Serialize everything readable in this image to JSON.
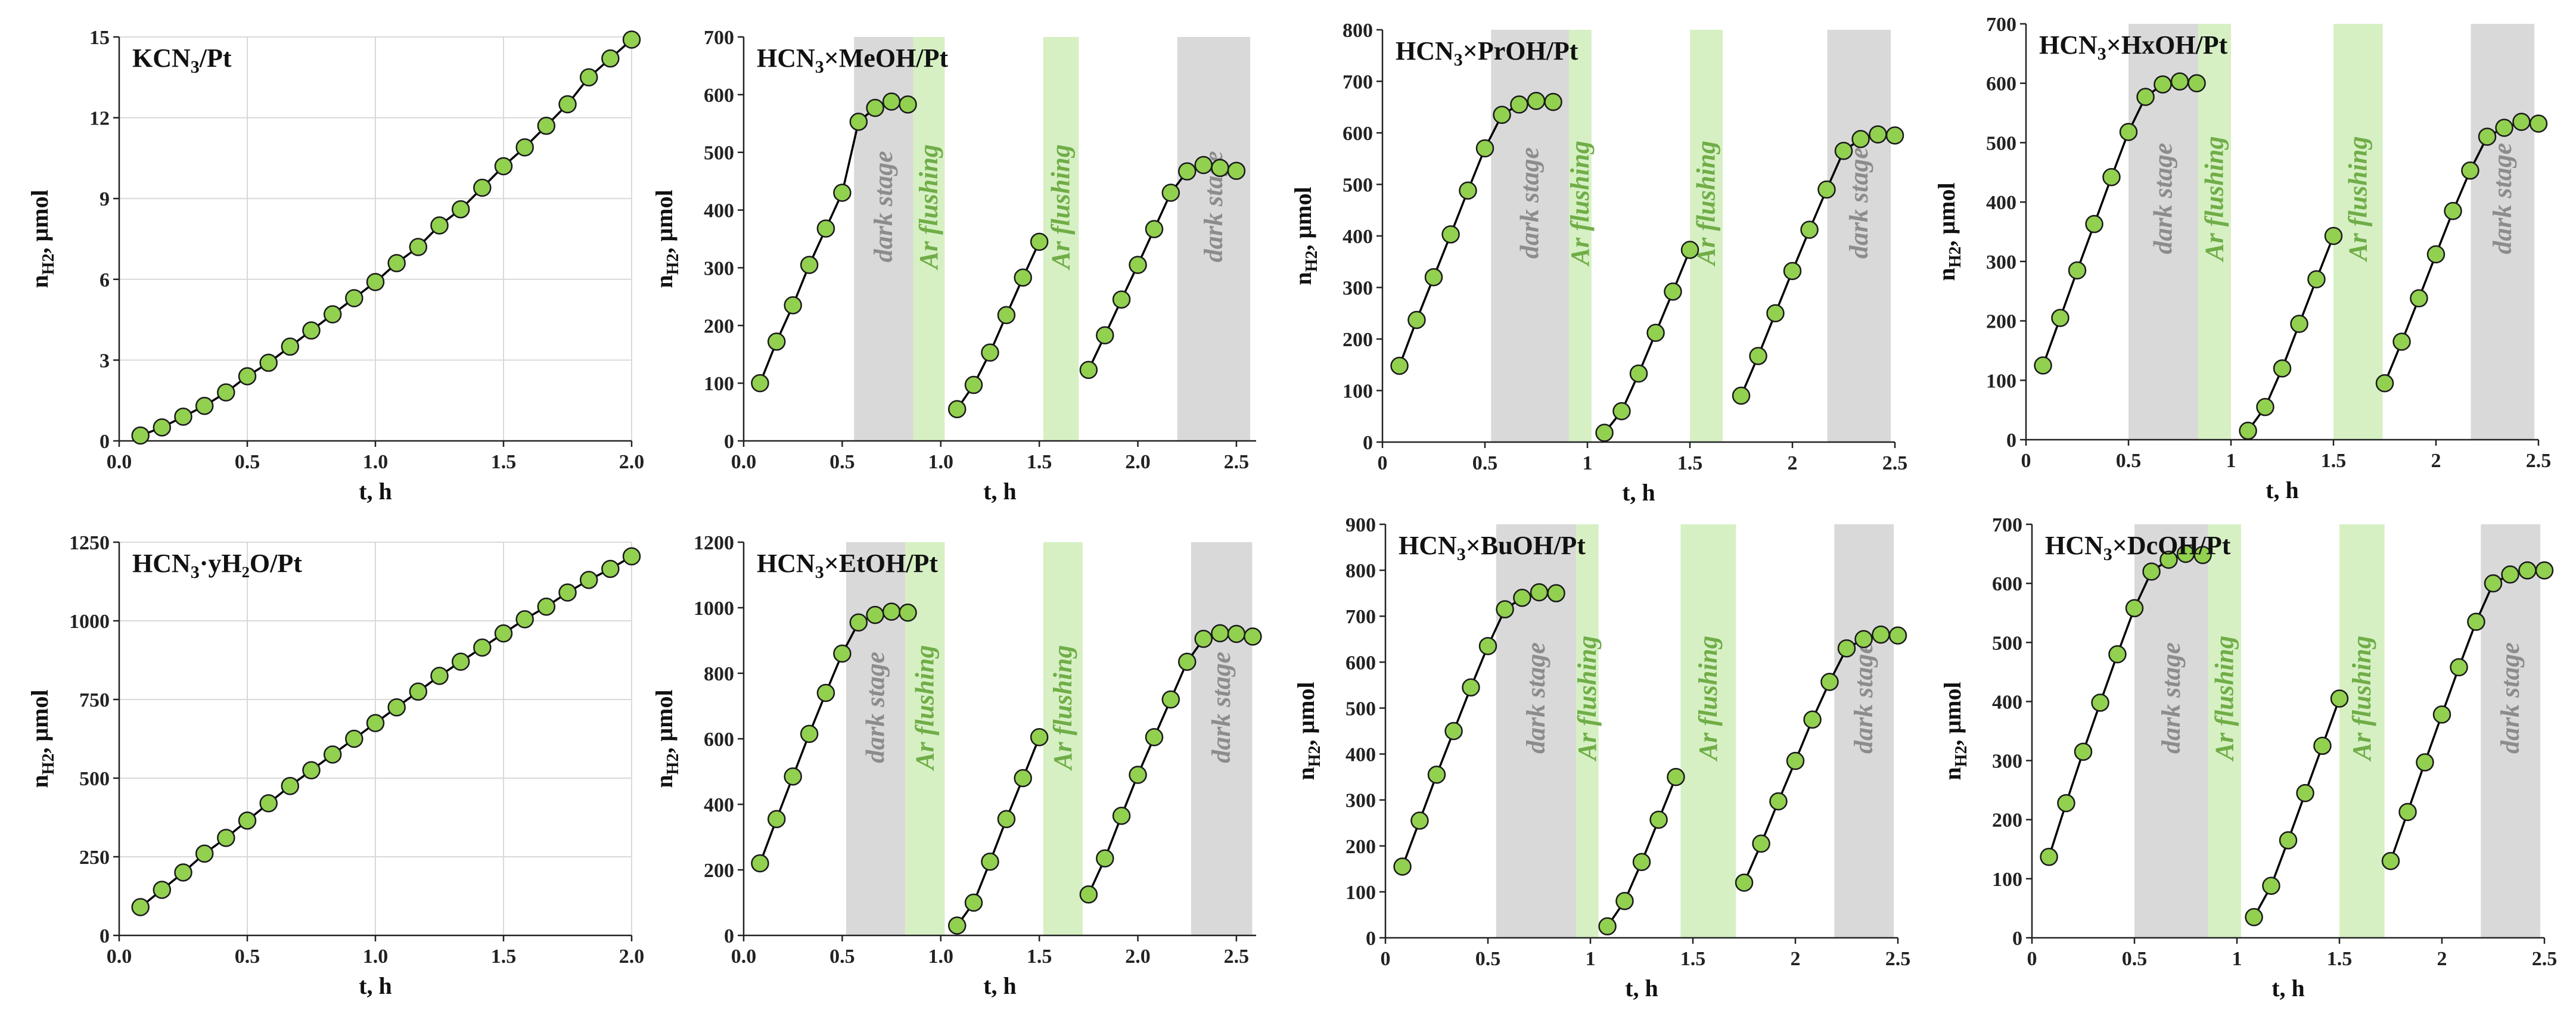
{
  "colors": {
    "marker_fill": "#92d050",
    "marker_edge": "#1a1a1a",
    "line": "#000000",
    "dark_band": "#d9d9d9",
    "ar_band": "#d6f0c4",
    "dark_text": "#8c8c8c",
    "ar_text": "#70ad47",
    "gridline": "#d9d9d9"
  },
  "chart_data": [
    {
      "type": "line",
      "title": "KCN",
      "title_sub": "3",
      "title_suffix": "/Pt",
      "xlabel": "t, h",
      "ylabel": "n",
      "ylabel_sub": "H2",
      "ylabel_suffix": ", μmol",
      "xlim": [
        0,
        2.0
      ],
      "xticks": [
        0,
        0.5,
        1.0,
        1.5,
        2.0
      ],
      "xtick_labels": [
        "0.0",
        "0.5",
        "1.0",
        "1.5",
        "2.0"
      ],
      "ylim": [
        0,
        15
      ],
      "yticks": [
        0,
        3,
        6,
        9,
        12,
        15
      ],
      "grid": true,
      "shades": [],
      "series": [
        {
          "x": [
            0.083,
            0.167,
            0.25,
            0.333,
            0.417,
            0.5,
            0.583,
            0.667,
            0.75,
            0.833,
            0.917,
            1.0,
            1.083,
            1.167,
            1.25,
            1.333,
            1.417,
            1.5,
            1.583,
            1.667,
            1.75,
            1.833,
            1.917,
            2.0
          ],
          "y": [
            0.2,
            0.5,
            0.9,
            1.3,
            1.8,
            2.4,
            2.9,
            3.5,
            4.1,
            4.7,
            5.3,
            5.9,
            6.6,
            7.2,
            8.0,
            8.6,
            9.4,
            10.2,
            10.9,
            11.7,
            12.5,
            13.5,
            14.2,
            14.9
          ]
        }
      ]
    },
    {
      "type": "line",
      "title": "HCN",
      "title_sub": "3",
      "title_suffix": "×MeOH/Pt",
      "xlabel": "t, h",
      "ylabel": "n",
      "ylabel_sub": "H2",
      "ylabel_suffix": ", μmol",
      "xlim": [
        0,
        2.6
      ],
      "xticks": [
        0,
        0.5,
        1.0,
        1.5,
        2.0,
        2.5
      ],
      "xtick_labels": [
        "0.0",
        "0.5",
        "1.0",
        "1.5",
        "2.0",
        "2.5"
      ],
      "ylim": [
        0,
        700
      ],
      "yticks": [
        0,
        100,
        200,
        300,
        400,
        500,
        600,
        700
      ],
      "grid": false,
      "shades": [
        {
          "kind": "dark",
          "x0": 0.56,
          "x1": 0.86,
          "label": "dark stage"
        },
        {
          "kind": "ar",
          "x0": 0.86,
          "x1": 1.02,
          "label": "Ar flushing"
        },
        {
          "kind": "ar",
          "x0": 1.52,
          "x1": 1.7,
          "label": "Ar flushing"
        },
        {
          "kind": "dark",
          "x0": 2.2,
          "x1": 2.57,
          "label": "dark stage"
        }
      ],
      "series": [
        {
          "x": [
            0.083,
            0.167,
            0.25,
            0.333,
            0.417,
            0.5,
            0.583,
            0.667,
            0.75,
            0.833
          ],
          "y": [
            100,
            172,
            235,
            305,
            368,
            430,
            553,
            577,
            588,
            583
          ]
        },
        {
          "x": [
            1.083,
            1.167,
            1.25,
            1.333,
            1.417,
            1.5
          ],
          "y": [
            55,
            97,
            153,
            218,
            283,
            345
          ]
        },
        {
          "x": [
            1.75,
            1.833,
            1.917,
            2.0,
            2.083,
            2.167,
            2.25,
            2.333,
            2.417,
            2.5
          ],
          "y": [
            123,
            183,
            245,
            305,
            367,
            430,
            467,
            478,
            473,
            468
          ]
        }
      ]
    },
    {
      "type": "line",
      "title": "HCN",
      "title_sub": "3",
      "title_suffix": "×PrOH/Pt",
      "xlabel": "t, h",
      "ylabel": "n",
      "ylabel_sub": "H2",
      "ylabel_suffix": ", μmol",
      "xlim": [
        0,
        2.5
      ],
      "xticks": [
        0,
        0.5,
        1.0,
        1.5,
        2.0,
        2.5
      ],
      "xtick_labels": [
        "0",
        "0.5",
        "1",
        "1.5",
        "2",
        "2.5"
      ],
      "ylim": [
        0,
        800
      ],
      "yticks": [
        0,
        100,
        200,
        300,
        400,
        500,
        600,
        700,
        800
      ],
      "grid": false,
      "shades": [
        {
          "kind": "dark",
          "x0": 0.53,
          "x1": 0.91,
          "label": "dark stage"
        },
        {
          "kind": "ar",
          "x0": 0.91,
          "x1": 1.02,
          "label": "Ar flushing"
        },
        {
          "kind": "ar",
          "x0": 1.5,
          "x1": 1.66,
          "label": "Ar flushing"
        },
        {
          "kind": "dark",
          "x0": 2.17,
          "x1": 2.48,
          "label": "dark stage"
        }
      ],
      "series": [
        {
          "x": [
            0.083,
            0.167,
            0.25,
            0.333,
            0.417,
            0.5,
            0.583,
            0.667,
            0.75,
            0.833
          ],
          "y": [
            148,
            237,
            320,
            403,
            488,
            570,
            635,
            655,
            662,
            660
          ]
        },
        {
          "x": [
            1.083,
            1.167,
            1.25,
            1.333,
            1.417,
            1.5
          ],
          "y": [
            18,
            60,
            133,
            212,
            292,
            373
          ]
        },
        {
          "x": [
            1.75,
            1.833,
            1.917,
            2.0,
            2.083,
            2.167,
            2.25,
            2.333,
            2.417,
            2.5
          ],
          "y": [
            90,
            167,
            250,
            332,
            412,
            490,
            565,
            588,
            597,
            595
          ]
        }
      ]
    },
    {
      "type": "line",
      "title": "HCN",
      "title_sub": "3",
      "title_suffix": "×HxOH/Pt",
      "xlabel": "t, h",
      "ylabel": "n",
      "ylabel_sub": "H2",
      "ylabel_suffix": ", μmol",
      "xlim": [
        0,
        2.5
      ],
      "xticks": [
        0,
        0.5,
        1.0,
        1.5,
        2.0,
        2.5
      ],
      "xtick_labels": [
        "0",
        "0.5",
        "1",
        "1.5",
        "2",
        "2.5"
      ],
      "ylim": [
        0,
        700
      ],
      "yticks": [
        0,
        100,
        200,
        300,
        400,
        500,
        600,
        700
      ],
      "grid": false,
      "shades": [
        {
          "kind": "dark",
          "x0": 0.5,
          "x1": 0.84,
          "label": "dark stage"
        },
        {
          "kind": "ar",
          "x0": 0.84,
          "x1": 1.0,
          "label": "Ar flushing"
        },
        {
          "kind": "ar",
          "x0": 1.5,
          "x1": 1.74,
          "label": "Ar flushing"
        },
        {
          "kind": "dark",
          "x0": 2.17,
          "x1": 2.48,
          "label": "dark stage"
        }
      ],
      "series": [
        {
          "x": [
            0.083,
            0.167,
            0.25,
            0.333,
            0.417,
            0.5,
            0.583,
            0.667,
            0.75,
            0.833
          ],
          "y": [
            125,
            205,
            285,
            363,
            442,
            518,
            577,
            598,
            603,
            600
          ]
        },
        {
          "x": [
            1.083,
            1.167,
            1.25,
            1.333,
            1.417,
            1.5
          ],
          "y": [
            15,
            55,
            120,
            195,
            270,
            343
          ]
        },
        {
          "x": [
            1.75,
            1.833,
            1.917,
            2.0,
            2.083,
            2.167,
            2.25,
            2.333,
            2.417,
            2.5
          ],
          "y": [
            95,
            165,
            238,
            312,
            385,
            453,
            510,
            525,
            535,
            532
          ]
        }
      ]
    },
    {
      "type": "line",
      "title": "HCN",
      "title_sub": "3",
      "title_suffix": "·yH₂O/Pt",
      "xlabel": "t, h",
      "ylabel": "n",
      "ylabel_sub": "H2",
      "ylabel_suffix": ", μmol",
      "xlim": [
        0,
        2.0
      ],
      "xticks": [
        0,
        0.5,
        1.0,
        1.5,
        2.0
      ],
      "xtick_labels": [
        "0.0",
        "0.5",
        "1.0",
        "1.5",
        "2.0"
      ],
      "ylim": [
        0,
        1250
      ],
      "yticks": [
        0,
        250,
        500,
        750,
        1000,
        1250
      ],
      "grid": true,
      "shades": [],
      "series": [
        {
          "x": [
            0.083,
            0.167,
            0.25,
            0.333,
            0.417,
            0.5,
            0.583,
            0.667,
            0.75,
            0.833,
            0.917,
            1.0,
            1.083,
            1.167,
            1.25,
            1.333,
            1.417,
            1.5,
            1.583,
            1.667,
            1.75,
            1.833,
            1.917,
            2.0
          ],
          "y": [
            90,
            145,
            200,
            260,
            310,
            365,
            420,
            475,
            525,
            575,
            625,
            675,
            725,
            775,
            825,
            870,
            915,
            960,
            1005,
            1045,
            1090,
            1130,
            1165,
            1205
          ]
        }
      ]
    },
    {
      "type": "line",
      "title": "HCN",
      "title_sub": "3",
      "title_suffix": "×EtOH/Pt",
      "xlabel": "t, h",
      "ylabel": "n",
      "ylabel_sub": "H2",
      "ylabel_suffix": ", μmol",
      "xlim": [
        0,
        2.6
      ],
      "xticks": [
        0,
        0.5,
        1.0,
        1.5,
        2.0,
        2.5
      ],
      "xtick_labels": [
        "0.0",
        "0.5",
        "1.0",
        "1.5",
        "2.0",
        "2.5"
      ],
      "ylim": [
        0,
        1200
      ],
      "yticks": [
        0,
        200,
        400,
        600,
        800,
        1000,
        1200
      ],
      "grid": false,
      "shades": [
        {
          "kind": "dark",
          "x0": 0.52,
          "x1": 0.82,
          "label": "dark stage"
        },
        {
          "kind": "ar",
          "x0": 0.82,
          "x1": 1.02,
          "label": "Ar flushing"
        },
        {
          "kind": "ar",
          "x0": 1.52,
          "x1": 1.72,
          "label": "Ar flushing"
        },
        {
          "kind": "dark",
          "x0": 2.27,
          "x1": 2.58,
          "label": "dark stage"
        }
      ],
      "series": [
        {
          "x": [
            0.083,
            0.167,
            0.25,
            0.333,
            0.417,
            0.5,
            0.583,
            0.667,
            0.75,
            0.833
          ],
          "y": [
            220,
            355,
            485,
            615,
            740,
            860,
            955,
            978,
            988,
            985
          ]
        },
        {
          "x": [
            1.083,
            1.167,
            1.25,
            1.333,
            1.417,
            1.5
          ],
          "y": [
            30,
            100,
            225,
            355,
            480,
            605
          ]
        },
        {
          "x": [
            1.75,
            1.833,
            1.917,
            2.0,
            2.083,
            2.167,
            2.25,
            2.333,
            2.417,
            2.5,
            2.583
          ],
          "y": [
            125,
            235,
            365,
            490,
            605,
            720,
            835,
            905,
            922,
            920,
            912
          ]
        }
      ]
    },
    {
      "type": "line",
      "title": "HCN",
      "title_sub": "3",
      "title_suffix": "×BuOH/Pt",
      "xlabel": "t, h",
      "ylabel": "n",
      "ylabel_sub": "H2",
      "ylabel_suffix": ", μmol",
      "xlim": [
        0,
        2.5
      ],
      "xticks": [
        0,
        0.5,
        1.0,
        1.5,
        2.0,
        2.5
      ],
      "xtick_labels": [
        "0",
        "0.5",
        "1",
        "1.5",
        "2",
        "2.5"
      ],
      "ylim": [
        0,
        900
      ],
      "yticks": [
        0,
        100,
        200,
        300,
        400,
        500,
        600,
        700,
        800,
        900
      ],
      "grid": false,
      "shades": [
        {
          "kind": "dark",
          "x0": 0.54,
          "x1": 0.93,
          "label": "dark stage"
        },
        {
          "kind": "ar",
          "x0": 0.93,
          "x1": 1.04,
          "label": "Ar flushing"
        },
        {
          "kind": "ar",
          "x0": 1.44,
          "x1": 1.71,
          "label": "Ar flushing"
        },
        {
          "kind": "dark",
          "x0": 2.19,
          "x1": 2.48,
          "label": "dark stage"
        }
      ],
      "series": [
        {
          "x": [
            0.083,
            0.167,
            0.25,
            0.333,
            0.417,
            0.5,
            0.583,
            0.667,
            0.75,
            0.833
          ],
          "y": [
            155,
            255,
            355,
            450,
            545,
            635,
            715,
            740,
            752,
            750
          ]
        },
        {
          "x": [
            1.083,
            1.167,
            1.25,
            1.333,
            1.417
          ],
          "y": [
            25,
            80,
            165,
            257,
            350
          ]
        },
        {
          "x": [
            1.75,
            1.833,
            1.917,
            2.0,
            2.083,
            2.167,
            2.25,
            2.333,
            2.417,
            2.5
          ],
          "y": [
            120,
            205,
            297,
            385,
            475,
            557,
            630,
            650,
            660,
            658
          ]
        }
      ]
    },
    {
      "type": "line",
      "title": "HCN",
      "title_sub": "3",
      "title_suffix": "×DcOH/Pt",
      "xlabel": "t, h",
      "ylabel": "n",
      "ylabel_sub": "H2",
      "ylabel_suffix": ", μmol",
      "xlim": [
        0,
        2.5
      ],
      "xticks": [
        0,
        0.5,
        1.0,
        1.5,
        2.0,
        2.5
      ],
      "xtick_labels": [
        "0",
        "0.5",
        "1",
        "1.5",
        "2",
        "2.5"
      ],
      "ylim": [
        0,
        700
      ],
      "yticks": [
        0,
        100,
        200,
        300,
        400,
        500,
        600,
        700
      ],
      "grid": false,
      "shades": [
        {
          "kind": "dark",
          "x0": 0.5,
          "x1": 0.86,
          "label": "dark stage"
        },
        {
          "kind": "ar",
          "x0": 0.86,
          "x1": 1.02,
          "label": "Ar flushing"
        },
        {
          "kind": "ar",
          "x0": 1.5,
          "x1": 1.72,
          "label": "Ar flushing"
        },
        {
          "kind": "dark",
          "x0": 2.19,
          "x1": 2.48,
          "label": "dark stage"
        }
      ],
      "series": [
        {
          "x": [
            0.083,
            0.167,
            0.25,
            0.333,
            0.417,
            0.5,
            0.583,
            0.667,
            0.75,
            0.833
          ],
          "y": [
            137,
            228,
            315,
            398,
            480,
            558,
            620,
            640,
            650,
            648
          ]
        },
        {
          "x": [
            1.083,
            1.167,
            1.25,
            1.333,
            1.417,
            1.5
          ],
          "y": [
            35,
            88,
            165,
            245,
            325,
            405
          ]
        },
        {
          "x": [
            1.75,
            1.833,
            1.917,
            2.0,
            2.083,
            2.167,
            2.25,
            2.333,
            2.417,
            2.5
          ],
          "y": [
            130,
            213,
            297,
            378,
            458,
            535,
            600,
            615,
            622,
            622
          ]
        }
      ]
    }
  ]
}
